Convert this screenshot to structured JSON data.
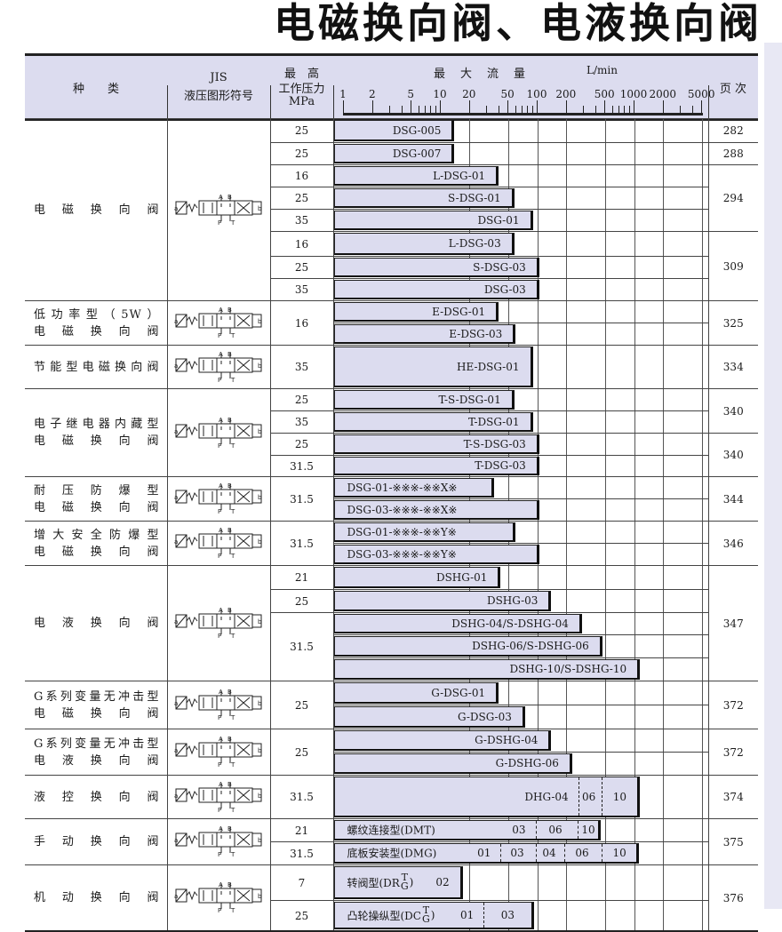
{
  "page_title": "电磁换向阀、电液换向阀",
  "header": {
    "kind": "种　　类",
    "jis_1": "JIS",
    "jis_2": "液压图形符号",
    "pressure_1": "最　高",
    "pressure_2": "工作压力",
    "pressure_3": "MPa",
    "flow_title": "最　大　流　量",
    "flow_unit": "L/min",
    "page": "页 次",
    "axis_ticks": [
      "1",
      "2",
      "5",
      "10",
      "20",
      "50",
      "100",
      "200",
      "500",
      "1000",
      "2000",
      "5000"
    ],
    "axis_scale": "log"
  },
  "colors": {
    "fill": "#dcdcef",
    "line": "#222222"
  },
  "groups": [
    {
      "kind": [
        "电磁换向阀"
      ],
      "symbol": "solenoid-valve-symbol",
      "rows": [
        {
          "pressure": "25",
          "page": "282",
          "bar": {
            "label": "DSG-005",
            "flow": 14
          }
        },
        {
          "pressure": "25",
          "page": "288",
          "bar": {
            "label": "DSG-007",
            "flow": 14
          }
        },
        {
          "pressure": "16",
          "page": "294",
          "bar": {
            "label": "L-DSG-01",
            "flow": 40
          }
        },
        {
          "pressure": "25",
          "bar": {
            "label": "S-DSG-01",
            "flow": 58
          }
        },
        {
          "pressure": "35",
          "bar": {
            "label": "DSG-01",
            "flow": 90
          }
        },
        {
          "pressure": "16",
          "page": "309",
          "bar": {
            "label": "L-DSG-03",
            "flow": 58
          }
        },
        {
          "pressure": "25",
          "bar": {
            "label": "S-DSG-03",
            "flow": 105
          }
        },
        {
          "pressure": "35",
          "bar": {
            "label": "DSG-03",
            "flow": 105
          }
        }
      ]
    },
    {
      "kind": [
        "低功率型（5W）",
        "电磁换向阀"
      ],
      "symbol": "solenoid-valve-symbol",
      "rows": [
        {
          "pressure": "16",
          "page": "325",
          "bar": {
            "label": "E-DSG-01",
            "flow": 40
          }
        },
        {
          "bar": {
            "label": "E-DSG-03",
            "flow": 60
          }
        }
      ]
    },
    {
      "kind": [
        "节能型电磁换向阀"
      ],
      "symbol": "solenoid-valve-symbol",
      "rows": [
        {
          "pressure": "35",
          "page": "334",
          "bar": {
            "label": "HE-DSG-01",
            "flow": 90
          }
        }
      ]
    },
    {
      "kind": [
        "电子继电器内藏型",
        "电磁换向阀"
      ],
      "symbol": "solenoid-valve-symbol",
      "rows": [
        {
          "pressure": "25",
          "page": "340",
          "bar": {
            "label": "T-S-DSG-01",
            "flow": 58
          }
        },
        {
          "pressure": "35",
          "bar": {
            "label": "T-DSG-01",
            "flow": 90
          }
        },
        {
          "pressure": "25",
          "page": "340",
          "bar": {
            "label": "T-S-DSG-03",
            "flow": 105
          }
        },
        {
          "pressure": "31.5",
          "bar": {
            "label": "T-DSG-03",
            "flow": 105
          }
        }
      ]
    },
    {
      "kind": [
        "耐压防爆型",
        "电磁换向阀"
      ],
      "symbol": "solenoid-valve-symbol",
      "rows": [
        {
          "pressure": "31.5",
          "page": "344",
          "bar": {
            "label": "DSG-01-※※※-※※X※",
            "flow": 36,
            "align": "left"
          }
        },
        {
          "bar": {
            "label": "DSG-03-※※※-※※X※",
            "flow": 105,
            "align": "left"
          }
        }
      ]
    },
    {
      "kind": [
        "增大安全防爆型",
        "电磁换向阀"
      ],
      "symbol": "solenoid-valve-symbol",
      "rows": [
        {
          "pressure": "31.5",
          "page": "346",
          "bar": {
            "label": "DSG-01-※※※-※※Y※",
            "flow": 60,
            "align": "left"
          }
        },
        {
          "bar": {
            "label": "DSG-03-※※※-※※Y※",
            "flow": 105,
            "align": "left"
          }
        }
      ]
    },
    {
      "kind": [
        "电液换向阀"
      ],
      "symbol": "electro-hydraulic-valve-symbol",
      "rows": [
        {
          "pressure": "21",
          "page": "347",
          "bar": {
            "label": "DSHG-01",
            "flow": 42
          }
        },
        {
          "pressure": "25",
          "bar": {
            "label": "DSHG-03",
            "flow": 140
          }
        },
        {
          "pressure": "31.5",
          "bar": {
            "label": "DSHG-04/S-DSHG-04",
            "flow": 290
          }
        },
        {
          "bar": {
            "label": "DSHG-06/S-DSHG-06",
            "flow": 470
          }
        },
        {
          "bar": {
            "label": "DSHG-10/S-DSHG-10",
            "flow": 1150
          }
        }
      ]
    },
    {
      "kind": [
        "G系列变量无冲击型",
        "电磁换向阀"
      ],
      "symbol": "solenoid-valve-symbol",
      "rows": [
        {
          "pressure": "25",
          "page": "372",
          "bar": {
            "label": "G-DSG-01",
            "flow": 40
          }
        },
        {
          "bar": {
            "label": "G-DSG-03",
            "flow": 75
          }
        }
      ]
    },
    {
      "kind": [
        "G系列变量无冲击型",
        "电液换向阀"
      ],
      "symbol": "electro-hydraulic-valve-symbol",
      "rows": [
        {
          "pressure": "25",
          "page": "372",
          "bar": {
            "label": "G-DSHG-04",
            "flow": 140
          }
        },
        {
          "bar": {
            "label": "G-DSHG-06",
            "flow": 230
          }
        }
      ]
    },
    {
      "kind": [
        "液控换向阀"
      ],
      "symbol": "pilot-operated-valve-symbol",
      "rows": [
        {
          "pressure": "31.5",
          "page": "374",
          "bar": {
            "flow": 1150,
            "segments": [
              {
                "label": "DHG-04",
                "to": 265
              },
              {
                "label": "06",
                "to": 460
              },
              {
                "label": "10",
                "to": 1150
              }
            ]
          }
        }
      ]
    },
    {
      "kind": [
        "手动换向阀"
      ],
      "symbol": "manual-valve-symbol",
      "rows": [
        {
          "pressure": "21",
          "page": "375",
          "bar": {
            "prefix": "螺纹连接型(DMT)",
            "flow": 457,
            "segments": [
              {
                "label": "03",
                "to": 96
              },
              {
                "label": "06",
                "to": 259
              },
              {
                "label": "10",
                "to": 457
              }
            ]
          }
        },
        {
          "pressure": "31.5",
          "bar": {
            "prefix": "底板安装型(DMG)",
            "flow": 1135,
            "segments": [
              {
                "label": "01",
                "to": 42
              },
              {
                "label": "03",
                "to": 96
              },
              {
                "label": "04",
                "to": 192
              },
              {
                "label": "06",
                "to": 460
              },
              {
                "label": "10",
                "to": 1135
              }
            ]
          }
        }
      ]
    },
    {
      "kind": [
        "机动换向阀"
      ],
      "symbol": "mechanical-valve-symbol",
      "rows": [
        {
          "pressure": "7",
          "page": "376",
          "bar": {
            "prefix": "转阀型(DR",
            "sub_top": "T",
            "sub_bottom": "G",
            "prefix_end": ")",
            "flow": 17,
            "segments": [
              {
                "label": "02",
                "to": 17
              }
            ]
          }
        },
        {
          "pressure": "25",
          "bar": {
            "prefix": "凸轮操纵型(DC",
            "sub_top": "T",
            "sub_bottom": "G",
            "prefix_end": ")",
            "flow": 92,
            "segments": [
              {
                "label": "01",
                "to": 28
              },
              {
                "label": "03",
                "to": 92
              }
            ]
          }
        }
      ]
    }
  ]
}
